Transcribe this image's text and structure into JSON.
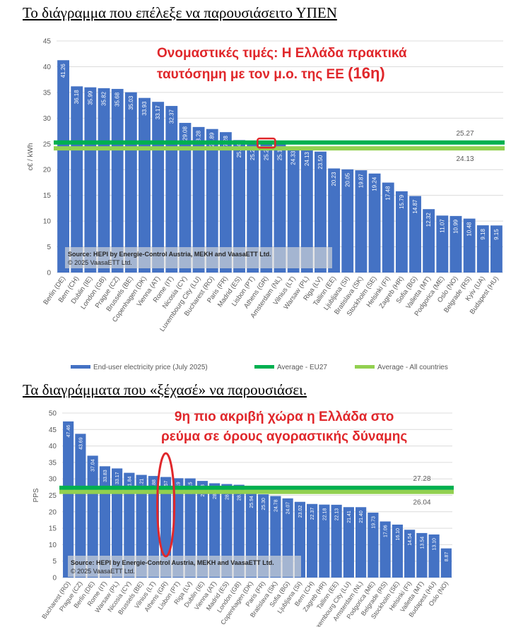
{
  "headings": {
    "top": "Το διάγραμμα που επέλεξε να παρουσιάσειτο ΥΠΕΝ",
    "bottom": "Τα διαγράμματα που «ξέχασέ» να παρουσιάσει."
  },
  "callouts": {
    "top_line1": "Ονομαστικές τιμές: Η Ελλάδα πρακτικά",
    "top_line2": "ταυτόσημη με τον μ.ο. της ΕΕ",
    "top_rank": "(16η)",
    "bottom_line1": "9η πιο ακριβή χώρα η Ελλάδα στο",
    "bottom_line2": "ρεύμα σε όρους αγοραστικής δύναμης"
  },
  "colors": {
    "bar": "#4472c4",
    "avg_eu": "#00b050",
    "avg_all": "#92d050",
    "annotation": "#e0272b",
    "axis_text": "#595959"
  },
  "chart_data": [
    {
      "type": "bar",
      "ylabel": "c€ / kWh",
      "ylim": [
        0,
        45
      ],
      "yticks": [
        0,
        5,
        10,
        15,
        20,
        25,
        30,
        35,
        40,
        45
      ],
      "source": "Source: HEPI by Energie-Control Austria, MEKH and VaasaETT Ltd.",
      "copyright": "© 2025 VaasaETT Ltd.",
      "categories": [
        "Berlin (DE)",
        "Bern (CH)",
        "Dublin (IE)",
        "London (GB)",
        "Prague (CZ)",
        "Brussels (BE)",
        "Copenhagen (DK)",
        "Vienna (AT)",
        "Rome (IT)",
        "Nicosia (CY)",
        "Luxembourg City (LU)",
        "Bucharest (RO)",
        "Paris (FR)",
        "Madrid (ES)",
        "Lisbon (PT)",
        "Athens (GR)",
        "Amsterdam (NL)",
        "Vilnius (LT)",
        "Warsaw (PL)",
        "Riga (LV)",
        "Tallinn (EE)",
        "Ljubljana (SI)",
        "Bratislava (SK)",
        "Stockholm (SE)",
        "Helsinki (FI)",
        "Zagreb (HR)",
        "Sofia (BG)",
        "Valletta (MT)",
        "Podgorica (ME)",
        "Oslo (NO)",
        "Belgrade (RS)",
        "Kyiv (UA)",
        "Budapest (HU)"
      ],
      "series": [
        {
          "name": "End-user electricity price (July 2025)",
          "values": [
            41.26,
            36.18,
            35.99,
            35.82,
            35.68,
            35.03,
            33.93,
            33.17,
            32.37,
            29.08,
            28.28,
            27.89,
            27.28,
            25.74,
            25.23,
            25.22,
            25.19,
            24.33,
            24.13,
            23.5,
            20.23,
            20.05,
            19.87,
            19.24,
            17.48,
            15.79,
            14.87,
            12.32,
            11.07,
            10.99,
            10.48,
            9.18,
            9.15
          ]
        }
      ],
      "lines": [
        {
          "name": "Average - EU27",
          "value": 25.27,
          "label": "25.27"
        },
        {
          "name": "Average - All countries",
          "value": 24.13,
          "label": "24.13"
        }
      ]
    },
    {
      "type": "bar",
      "ylabel": "PPS",
      "ylim": [
        0,
        50
      ],
      "yticks": [
        0,
        5,
        10,
        15,
        20,
        25,
        30,
        35,
        40,
        45,
        50
      ],
      "source": "Source: HEPI by Energie-Control Austria, MEKH and VaasaETT Ltd.",
      "copyright": "© 2025 VaasaETT Ltd.",
      "categories": [
        "Bucharest (RO)",
        "Prague (CZ)",
        "Berlin (DE)",
        "Rome (IT)",
        "Warsaw (PL)",
        "Nicosia (CY)",
        "Brussels (BE)",
        "Vilnius (LT)",
        "Athens (GR)",
        "Lisbon (PT)",
        "Riga (LV)",
        "Dublin (IE)",
        "Vienna (AT)",
        "Madrid (ES)",
        "London (GB)",
        "Copenhagen (DK)",
        "Paris (FR)",
        "Bratislava (SK)",
        "Sofia (BG)",
        "Ljubljana (SI)",
        "Bern (CH)",
        "Zagreb (HR)",
        "Tallinn (EE)",
        "Luxembourg City (LU)",
        "Amsterdam (NL)",
        "Podgorica (ME)",
        "Belgrade (RS)",
        "Stockholm (SE)",
        "Helsinki (FI)",
        "Valletta (MT)",
        "Budapest (HU)",
        "Oslo (NO)"
      ],
      "series": [
        {
          "name": "",
          "values": [
            47.46,
            43.69,
            37.04,
            33.83,
            33.17,
            31.84,
            31.21,
            30.88,
            30.57,
            30.19,
            30.15,
            29.38,
            28.66,
            28.43,
            28.21,
            25.94,
            25.3,
            24.78,
            24.07,
            23.02,
            22.37,
            22.18,
            22.13,
            21.41,
            21.4,
            19.73,
            17.06,
            16.1,
            14.54,
            13.54,
            13.1,
            8.87
          ]
        }
      ],
      "lines": [
        {
          "name": "",
          "value": 27.28,
          "label": "27.28"
        },
        {
          "name": "",
          "value": 26.04,
          "label": "26.04"
        }
      ]
    }
  ],
  "legend": [
    {
      "label": "End-user electricity price (July 2025)",
      "kind": "bar"
    },
    {
      "label": "Average - EU27",
      "kind": "avg_eu"
    },
    {
      "label": "Average - All countries",
      "kind": "avg_all"
    }
  ]
}
